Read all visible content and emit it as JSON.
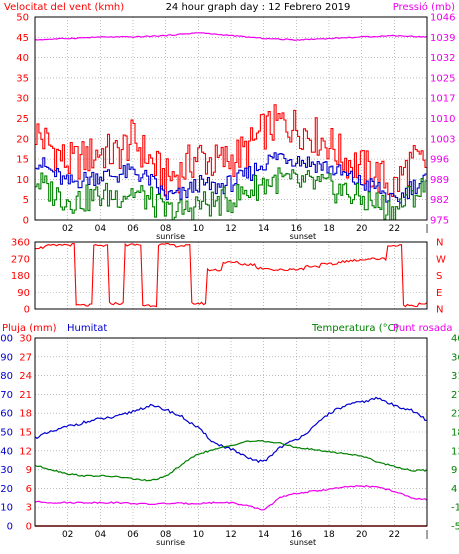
{
  "colors": {
    "wind": "#ff0000",
    "gust_avg": "#0000cc",
    "wind_low": "#008000",
    "pressure": "#ee00ee",
    "direction": "#ff0000",
    "humidity": "#0000cc",
    "temperature": "#008000",
    "dewpoint": "#ee00ee",
    "rain": "#ff0000",
    "axis": "#000000",
    "grid": "#999999"
  },
  "chart_data": [
    {
      "type": "line",
      "title": "24 hour graph day : 12 Febrero 2019",
      "ylabel": "Velocitat del vent (kmh)",
      "y2label": "Pressió (mb)",
      "x_tick_labels": [
        "02",
        "04",
        "06",
        "08",
        "10",
        "12",
        "14",
        "16",
        "18",
        "20",
        "22",
        "|"
      ],
      "x_markers": [
        "sunrise",
        "sunset"
      ],
      "y_ticks": [
        "0",
        "5",
        "10",
        "15",
        "20",
        "25",
        "30",
        "35",
        "40",
        "45",
        "50"
      ],
      "y2_ticks": [
        "975",
        "982",
        "989",
        "996",
        "1003",
        "1010",
        "1017",
        "1025",
        "1032",
        "1039",
        "1046"
      ],
      "ylim": [
        0,
        50
      ],
      "y2lim": [
        975,
        1046
      ],
      "series": [
        {
          "name": "",
          "role": "gust",
          "x": [
            0,
            1,
            2,
            3,
            4,
            5,
            6,
            7,
            8,
            9,
            10,
            11,
            12,
            13,
            14,
            15,
            16,
            17,
            18,
            19,
            20,
            21,
            22,
            23,
            24
          ],
          "values": [
            22,
            18,
            14,
            15,
            17,
            16,
            20,
            15,
            10,
            12,
            16,
            14,
            15,
            17,
            22,
            24,
            23,
            21,
            19,
            15,
            13,
            11,
            8,
            14,
            14
          ]
        },
        {
          "name": "",
          "role": "average",
          "x": [
            0,
            1,
            2,
            3,
            4,
            5,
            6,
            7,
            8,
            9,
            10,
            11,
            12,
            13,
            14,
            15,
            16,
            17,
            18,
            19,
            20,
            21,
            22,
            23,
            24
          ],
          "values": [
            15,
            12,
            9,
            10,
            11,
            11,
            12,
            10,
            6,
            6,
            9,
            8,
            9,
            11,
            14,
            16,
            15,
            14,
            13,
            11,
            9,
            8,
            4,
            8,
            10
          ]
        },
        {
          "name": "",
          "role": "low",
          "x": [
            0,
            1,
            2,
            3,
            4,
            5,
            6,
            7,
            8,
            9,
            10,
            11,
            12,
            13,
            14,
            15,
            16,
            17,
            18,
            19,
            20,
            21,
            22,
            23,
            24
          ],
          "values": [
            10,
            7,
            5,
            5,
            6,
            6,
            7,
            5,
            2,
            2,
            4,
            4,
            5,
            7,
            9,
            10,
            9,
            9,
            8,
            7,
            5,
            4,
            2,
            6,
            8
          ]
        },
        {
          "name": "",
          "role": "pressure",
          "axis": "y2",
          "x": [
            0,
            2,
            4,
            6,
            8,
            10,
            12,
            14,
            16,
            18,
            20,
            22,
            24
          ],
          "values": [
            1038,
            1038.5,
            1039,
            1039,
            1039.5,
            1040.5,
            1039.5,
            1038.5,
            1038,
            1038.5,
            1039,
            1039.5,
            1039
          ]
        }
      ]
    },
    {
      "type": "line",
      "ylabel": "",
      "y_ticks": [
        "360",
        "270",
        "180",
        "90",
        "0"
      ],
      "y2_ticks": [
        "N",
        "W",
        "S",
        "E",
        "N"
      ],
      "ylim": [
        0,
        360
      ],
      "series": [
        {
          "name": "",
          "role": "direction",
          "x": [
            0,
            1,
            2,
            3,
            4,
            5,
            6,
            7,
            8,
            9,
            10,
            11,
            12,
            13,
            14,
            15,
            16,
            17,
            18,
            19,
            20,
            21,
            22,
            23,
            24
          ],
          "values": [
            330,
            340,
            345,
            20,
            340,
            30,
            345,
            20,
            345,
            340,
            30,
            210,
            250,
            240,
            220,
            210,
            215,
            230,
            240,
            255,
            265,
            270,
            340,
            20,
            30
          ]
        }
      ]
    },
    {
      "type": "line",
      "ylabel": "Pluja (mm)",
      "ylabel2": "Humitat",
      "y2label": "Temperatura (°C)",
      "y2label2": "Punt rosada",
      "x_tick_labels": [
        "02",
        "04",
        "06",
        "08",
        "10",
        "12",
        "14",
        "16",
        "18",
        "20",
        "22",
        "|"
      ],
      "x_markers": [
        "sunrise",
        "sunset"
      ],
      "y_ticks_rain": [
        "0",
        "10",
        "20",
        "30",
        "40",
        "50",
        "60",
        "70",
        "80",
        "90",
        "100"
      ],
      "y_ticks_humidity": [
        "0",
        "3",
        "6",
        "9",
        "12",
        "15",
        "18",
        "21",
        "24",
        "27",
        "30"
      ],
      "y2_ticks": [
        "-5",
        "-1",
        "4",
        "9",
        "13",
        "18",
        "22",
        "27",
        "31",
        "36",
        "40"
      ],
      "ylim": [
        0,
        100
      ],
      "y2lim": [
        -5,
        40
      ],
      "series": [
        {
          "name": "",
          "role": "humidity",
          "x": [
            0,
            1,
            2,
            3,
            4,
            5,
            6,
            7,
            8,
            9,
            10,
            11,
            12,
            13,
            14,
            15,
            16,
            17,
            18,
            19,
            20,
            21,
            22,
            23,
            24
          ],
          "values": [
            47,
            50,
            53,
            55,
            57,
            58,
            61,
            64,
            62,
            58,
            52,
            44,
            41,
            36,
            34,
            42,
            46,
            52,
            60,
            64,
            66,
            68,
            64,
            62,
            56
          ]
        },
        {
          "name": "",
          "role": "temperature",
          "axis": "y2",
          "x": [
            0,
            1,
            2,
            3,
            4,
            5,
            6,
            7,
            8,
            9,
            10,
            11,
            12,
            13,
            14,
            15,
            16,
            17,
            18,
            19,
            20,
            21,
            22,
            23,
            24
          ],
          "values": [
            9.5,
            8.5,
            7.5,
            7,
            7,
            6.8,
            6.3,
            5.8,
            6.8,
            9.8,
            12.3,
            13.3,
            14.3,
            15.3,
            15.3,
            14.8,
            13.8,
            13.3,
            12.8,
            12.3,
            11.8,
            10.3,
            9.3,
            8.3,
            8.3
          ]
        },
        {
          "name": "",
          "role": "dewpoint",
          "axis": "y2",
          "x": [
            0,
            1,
            2,
            3,
            4,
            5,
            6,
            7,
            8,
            9,
            10,
            11,
            12,
            13,
            14,
            15,
            16,
            17,
            18,
            19,
            20,
            21,
            22,
            23,
            24
          ],
          "values": [
            0.8,
            0.6,
            0.6,
            0.6,
            0.6,
            0.6,
            0.4,
            0.2,
            0.4,
            0.4,
            0.4,
            0.6,
            0.6,
            -0.2,
            -1.2,
            1.8,
            2.8,
            3.3,
            3.8,
            4.3,
            4.6,
            4.3,
            3.3,
            1.8,
            1.3
          ]
        },
        {
          "name": "",
          "role": "rain",
          "x": [
            0,
            24
          ],
          "values": [
            0,
            0
          ]
        }
      ]
    }
  ]
}
